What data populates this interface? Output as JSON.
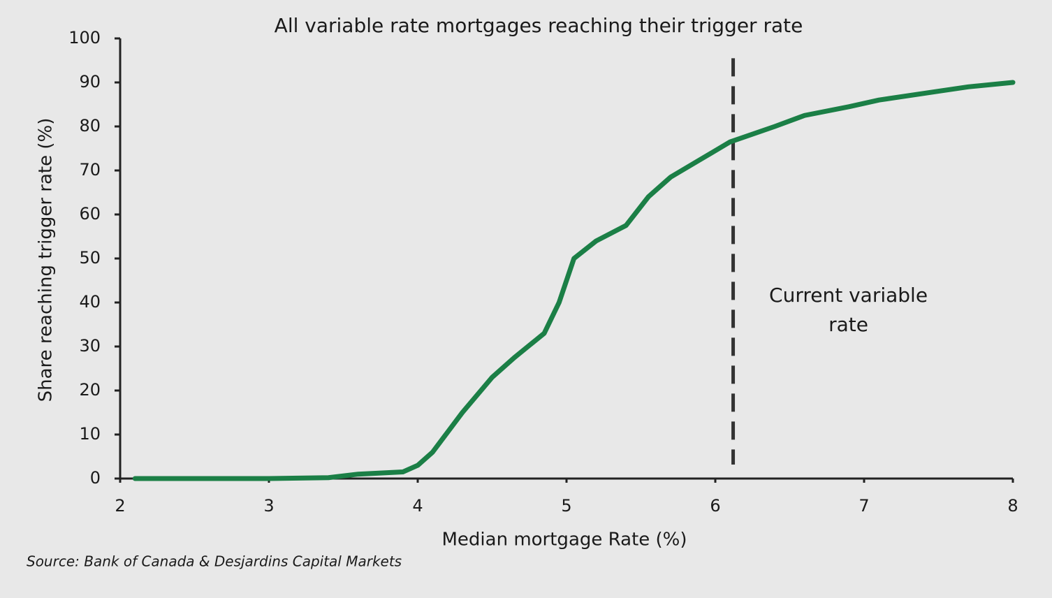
{
  "chart_data": {
    "type": "line",
    "title": "All variable rate mortgages reaching their trigger rate",
    "x_label": "Median mortgage Rate (%)",
    "y_label": "Share reaching trigger rate (%)",
    "source": "Source: Bank of Canada & Desjardins Capital Markets",
    "x": [
      2.1,
      3.0,
      3.4,
      3.6,
      3.9,
      4.0,
      4.1,
      4.3,
      4.5,
      4.65,
      4.85,
      4.95,
      5.05,
      5.2,
      5.4,
      5.55,
      5.7,
      5.9,
      6.1,
      6.4,
      6.6,
      6.9,
      7.1,
      7.5,
      7.7,
      8.0
    ],
    "values": [
      0,
      0,
      0.2,
      1,
      1.5,
      3,
      6,
      15,
      23,
      27.5,
      33,
      40,
      50,
      54,
      57.5,
      64,
      68.5,
      72.5,
      76.5,
      80,
      82.5,
      84.5,
      86,
      88,
      89,
      90
    ],
    "color": "#1b7f46",
    "xlim": [
      2,
      8
    ],
    "xticks": [
      2,
      3,
      4,
      5,
      6,
      7,
      8
    ],
    "ylim": [
      0,
      100
    ],
    "yticks": [
      0,
      10,
      20,
      30,
      40,
      50,
      60,
      70,
      80,
      90,
      100
    ],
    "vline": {
      "x": 6.12,
      "color": "#333333",
      "annotation": [
        "Current variable",
        "rate"
      ]
    }
  }
}
